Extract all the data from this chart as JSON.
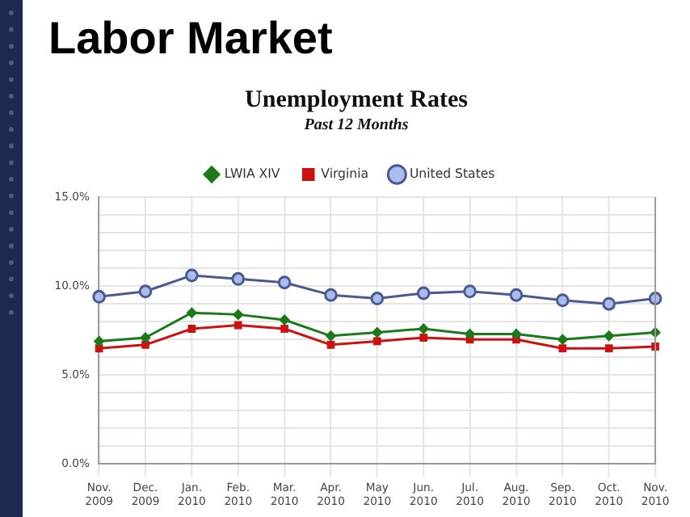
{
  "chart_data": {
    "type": "line",
    "title": "Unemployment Rates",
    "subtitle": "Past 12 Months",
    "annotations": [
      "Labor Market"
    ],
    "categories": [
      "Nov. 2009",
      "Dec. 2009",
      "Jan. 2010",
      "Feb. 2010",
      "Mar. 2010",
      "Apr. 2010",
      "May 2010",
      "Jun. 2010",
      "Jul. 2010",
      "Aug. 2010",
      "Sep. 2010",
      "Oct. 2010",
      "Nov. 2010"
    ],
    "series": [
      {
        "name": "LWIA XIV",
        "color": "#1a7a1a",
        "marker": "diamond",
        "values": [
          6.9,
          7.1,
          8.5,
          8.4,
          8.1,
          7.2,
          7.4,
          7.6,
          7.3,
          7.3,
          7.0,
          7.2,
          7.4
        ]
      },
      {
        "name": "Virginia",
        "color": "#cc1111",
        "marker": "square",
        "values": [
          6.5,
          6.7,
          7.6,
          7.8,
          7.6,
          6.7,
          6.9,
          7.1,
          7.0,
          7.0,
          6.5,
          6.5,
          6.6
        ]
      },
      {
        "name": "United States",
        "color": "#4a5a90",
        "marker": "circle",
        "values": [
          9.4,
          9.7,
          10.6,
          10.4,
          10.2,
          9.5,
          9.3,
          9.6,
          9.7,
          9.5,
          9.2,
          9.0,
          9.3
        ]
      }
    ],
    "ylim": [
      0,
      15
    ],
    "yticks": [
      {
        "value": 0,
        "label": "0.0%"
      },
      {
        "value": 1,
        "label": null
      },
      {
        "value": 2,
        "label": null
      },
      {
        "value": 3,
        "label": null
      },
      {
        "value": 4,
        "label": null
      },
      {
        "value": 5,
        "label": "5.0%"
      },
      {
        "value": 6,
        "label": null
      },
      {
        "value": 7,
        "label": null
      },
      {
        "value": 8,
        "label": null
      },
      {
        "value": 9,
        "label": null
      },
      {
        "value": 10,
        "label": "10.0%"
      },
      {
        "value": 11,
        "label": null
      },
      {
        "value": 12,
        "label": null
      },
      {
        "value": 13,
        "label": null
      },
      {
        "value": 14,
        "label": null
      },
      {
        "value": 15,
        "label": "15.0%"
      }
    ],
    "grid": true,
    "legend": "top",
    "line_style": "solid"
  }
}
